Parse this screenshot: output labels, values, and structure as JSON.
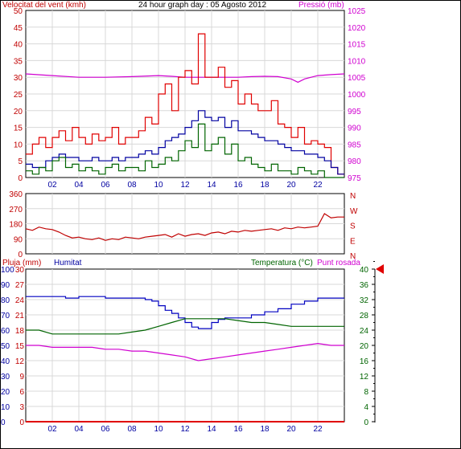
{
  "colors": {
    "wind": "#e00000",
    "gust": "#e00000",
    "pressure": "#d000d0",
    "direction": "#c00000",
    "humidity": "#0000c0",
    "temperature": "#006400",
    "dew_point": "#d000d0",
    "rain": "#e00000",
    "grid": "#d8d8d8",
    "axis_blue": "#0000a0",
    "axis_green": "#006400",
    "axis_red": "#c00000",
    "marker": "#e00000"
  },
  "chart_data": [
    {
      "type": "line",
      "title": "24 hour graph day : 05 Agosto 2012",
      "ylabel": "Velocitat del vent (kmh)",
      "y2label": "Pressió (mb)",
      "x_tick_labels": [
        "02",
        "04",
        "06",
        "08",
        "10",
        "12",
        "14",
        "16",
        "18",
        "20",
        "22"
      ],
      "xlim": [
        0,
        24
      ],
      "ylim": [
        0,
        50
      ],
      "y_ticks": [
        0,
        5,
        10,
        15,
        20,
        25,
        30,
        35,
        40,
        45,
        50
      ],
      "y2lim": [
        975,
        1025
      ],
      "y2_ticks": [
        975,
        980,
        985,
        990,
        995,
        1000,
        1005,
        1010,
        1015,
        1020,
        1025
      ],
      "grid": true,
      "series": [
        {
          "key": "pressure",
          "axis": "y2",
          "x": [
            0,
            2,
            4,
            6,
            8,
            10,
            11,
            12,
            13,
            14,
            15,
            16,
            17,
            18,
            19,
            20,
            20.5,
            21,
            22,
            23,
            24
          ],
          "values": [
            1006,
            1005.5,
            1005,
            1005,
            1005.2,
            1005.5,
            1005.3,
            1005,
            1005,
            1005,
            1005,
            1005,
            1005.2,
            1005.3,
            1005.2,
            1004.5,
            1003.5,
            1004.5,
            1005.5,
            1005.8,
            1006
          ]
        },
        {
          "key": "gust",
          "axis": "y",
          "x": [
            0,
            0.5,
            1,
            1.5,
            2,
            2.5,
            3,
            3.5,
            4,
            4.5,
            5,
            5.5,
            6,
            6.5,
            7,
            7.5,
            8,
            8.5,
            9,
            9.5,
            10,
            10.5,
            11,
            11.5,
            12,
            12.5,
            13,
            13.5,
            14,
            14.5,
            15,
            15.5,
            16,
            16.5,
            17,
            17.5,
            18,
            18.5,
            19,
            19.5,
            20,
            20.5,
            21,
            21.5,
            22,
            22.5,
            23,
            23.5
          ],
          "values": [
            7,
            10,
            12,
            9,
            12,
            14,
            11,
            15,
            12,
            10,
            13,
            11,
            12,
            15,
            10,
            12,
            12,
            14,
            18,
            16,
            25,
            28,
            20,
            30,
            32,
            28,
            43,
            30,
            30,
            33,
            27,
            29,
            22,
            25,
            22,
            20,
            20,
            23,
            16,
            15,
            12,
            15,
            10,
            11,
            10,
            9,
            3,
            1
          ]
        },
        {
          "key": "wind",
          "axis": "y",
          "x": [
            0,
            0.5,
            1,
            1.5,
            2,
            2.5,
            3,
            3.5,
            4,
            4.5,
            5,
            5.5,
            6,
            6.5,
            7,
            7.5,
            8,
            8.5,
            9,
            9.5,
            10,
            10.5,
            11,
            11.5,
            12,
            12.5,
            13,
            13.5,
            14,
            14.5,
            15,
            15.5,
            16,
            16.5,
            17,
            17.5,
            18,
            18.5,
            19,
            19.5,
            20,
            20.5,
            21,
            21.5,
            22,
            22.5,
            23,
            23.5
          ],
          "values": [
            4,
            3,
            3,
            5,
            6,
            7,
            6,
            6,
            5,
            5,
            6,
            5,
            5,
            6,
            5,
            6,
            6,
            7,
            8,
            7,
            9,
            11,
            12,
            13,
            15,
            17,
            20,
            18,
            17,
            18,
            15,
            17,
            14,
            14,
            13,
            12,
            11,
            11,
            10,
            9,
            8,
            8,
            7,
            7,
            6,
            5,
            3,
            1
          ]
        },
        {
          "key": "temperature_wind_avg",
          "axis": "y",
          "x": [
            0,
            0.5,
            1,
            1.5,
            2,
            2.5,
            3,
            3.5,
            4,
            4.5,
            5,
            5.5,
            6,
            6.5,
            7,
            7.5,
            8,
            8.5,
            9,
            9.5,
            10,
            10.5,
            11,
            11.5,
            12,
            12.5,
            13,
            13.5,
            14,
            14.5,
            15,
            15.5,
            16,
            16.5,
            17,
            17.5,
            18,
            18.5,
            19,
            19.5,
            20,
            20.5,
            21,
            21.5,
            22,
            22.5,
            23,
            23.5
          ],
          "values": [
            2,
            1,
            3,
            2,
            5,
            6,
            3,
            4,
            2,
            3,
            2,
            1,
            3,
            4,
            2,
            3,
            3,
            2,
            5,
            3,
            4,
            6,
            5,
            8,
            11,
            9,
            16,
            8,
            10,
            12,
            7,
            10,
            5,
            6,
            4,
            3,
            2,
            4,
            2,
            2,
            1,
            3,
            2,
            1,
            2,
            0,
            0,
            0
          ]
        }
      ]
    },
    {
      "type": "line",
      "y_tick_labels_left": [
        "360",
        "270",
        "180",
        "90",
        "0"
      ],
      "y_tick_labels_right": [
        "N",
        "W",
        "S",
        "E",
        "N"
      ],
      "xlim": [
        0,
        24
      ],
      "ylim": [
        0,
        360
      ],
      "grid": true,
      "series": [
        {
          "key": "direction",
          "x": [
            0,
            0.5,
            1,
            1.5,
            2,
            2.5,
            3,
            3.5,
            4,
            4.5,
            5,
            5.5,
            6,
            6.5,
            7,
            7.5,
            8,
            8.5,
            9,
            9.5,
            10,
            10.5,
            11,
            11.5,
            12,
            12.5,
            13,
            13.5,
            14,
            14.5,
            15,
            15.5,
            16,
            16.5,
            17,
            17.5,
            18,
            18.5,
            19,
            19.5,
            20,
            20.5,
            21,
            21.5,
            22,
            22.5,
            23,
            23.5,
            24
          ],
          "values": [
            150,
            140,
            160,
            150,
            145,
            130,
            110,
            95,
            100,
            90,
            85,
            95,
            80,
            90,
            85,
            100,
            95,
            90,
            100,
            105,
            110,
            115,
            100,
            120,
            105,
            115,
            120,
            110,
            125,
            130,
            120,
            135,
            130,
            140,
            135,
            140,
            145,
            150,
            140,
            155,
            150,
            160,
            155,
            160,
            165,
            240,
            215,
            220,
            220
          ]
        }
      ]
    },
    {
      "type": "line",
      "left_labels": {
        "rain": "Pluja (mm)",
        "humidity": "Humitat"
      },
      "right_labels": {
        "temperature": "Temperatura (°C)",
        "dew_point": "Punt rosada"
      },
      "rain_ticks": [
        "0",
        "3",
        "6",
        "9",
        "12",
        "15",
        "18",
        "21",
        "24",
        "27",
        "30"
      ],
      "humidity_ticks": [
        "0",
        "10",
        "20",
        "30",
        "40",
        "50",
        "60",
        "70",
        "80",
        "90",
        "100"
      ],
      "temperature_ticks": [
        "0",
        "4",
        "8",
        "12",
        "16",
        "20",
        "24",
        "28",
        "32",
        "36",
        "40"
      ],
      "x_tick_labels": [
        "02",
        "04",
        "06",
        "08",
        "10",
        "12",
        "14",
        "16",
        "18",
        "20",
        "22"
      ],
      "xlim": [
        0,
        24
      ],
      "ylim_temperature": [
        0,
        40
      ],
      "ylim_humidity": [
        0,
        100
      ],
      "ylim_rain": [
        0,
        30
      ],
      "grid": true,
      "current_temperature_marker": 40,
      "series": [
        {
          "key": "humidity",
          "axis": "humidity",
          "x": [
            0,
            1,
            2,
            3,
            4,
            5,
            6,
            7,
            8,
            9,
            9.5,
            10,
            10.5,
            11,
            11.5,
            12,
            12.5,
            13,
            13.5,
            14,
            14.5,
            15,
            16,
            17,
            18,
            19,
            20,
            21,
            22,
            23,
            24
          ],
          "values": [
            82,
            82,
            82,
            81,
            82,
            82,
            81,
            81,
            81,
            80,
            79,
            76,
            73,
            71,
            68,
            65,
            62,
            61,
            61,
            65,
            67,
            68,
            68,
            70,
            72,
            74,
            77,
            79,
            81,
            81,
            81
          ]
        },
        {
          "key": "temperature",
          "axis": "temperature",
          "x": [
            0,
            1,
            2,
            3,
            4,
            5,
            6,
            7,
            8,
            9,
            10,
            11,
            12,
            13,
            14,
            15,
            16,
            17,
            18,
            19,
            20,
            21,
            22,
            23,
            24
          ],
          "values": [
            24,
            24,
            23,
            23,
            23,
            23,
            23,
            23,
            23.5,
            24,
            25,
            26,
            27,
            27,
            27,
            27,
            26.5,
            26,
            26,
            25.5,
            25,
            25,
            25,
            25,
            25
          ]
        },
        {
          "key": "dew_point",
          "axis": "temperature",
          "x": [
            0,
            1,
            2,
            3,
            4,
            5,
            6,
            7,
            8,
            9,
            10,
            11,
            12,
            13,
            14,
            15,
            16,
            17,
            18,
            19,
            20,
            21,
            22,
            23,
            24
          ],
          "values": [
            20,
            20,
            19.5,
            19.5,
            19.5,
            19.5,
            19,
            19,
            18.5,
            18.5,
            18,
            17.5,
            17,
            16,
            16.5,
            17,
            17.5,
            18,
            18.5,
            19,
            19.5,
            20,
            20.5,
            20,
            20
          ]
        },
        {
          "key": "rain",
          "axis": "rain",
          "x": [
            0,
            24
          ],
          "values": [
            0,
            0
          ]
        }
      ]
    }
  ]
}
